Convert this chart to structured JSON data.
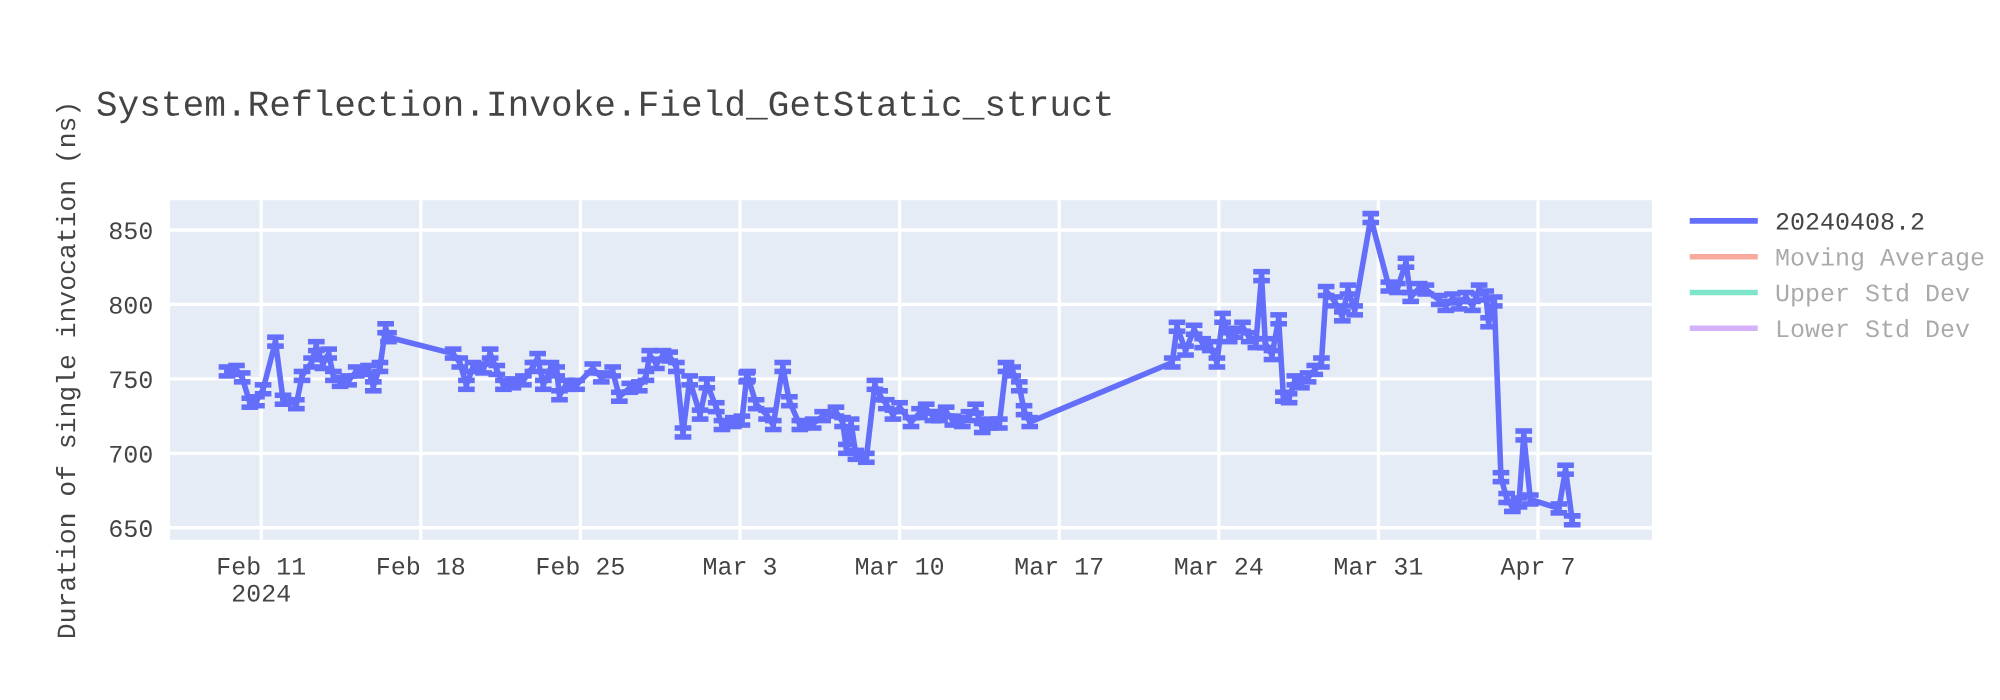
{
  "chart_data": {
    "type": "line",
    "title": "System.Reflection.Invoke.Field_GetStatic_struct",
    "ylabel": "Duration of single invocation (ns)",
    "x": [
      "2024-02-09T12:00",
      "2024-02-09T22:00",
      "2024-02-10T04:00",
      "2024-02-10T12:00",
      "2024-02-10T19:00",
      "2024-02-11T02:00",
      "2024-02-11T15:00",
      "2024-02-11T23:00",
      "2024-02-12T13:00",
      "2024-02-12T19:00",
      "2024-02-13T05:00",
      "2024-02-13T10:00",
      "2024-02-13T17:00",
      "2024-02-13T23:00",
      "2024-02-14T04:00",
      "2024-02-14T11:00",
      "2024-02-14T20:00",
      "2024-02-15T04:00",
      "2024-02-15T17:00",
      "2024-02-15T22:00",
      "2024-02-16T05:00",
      "2024-02-16T11:00",
      "2024-02-16T14:00",
      "2024-02-19T10:00",
      "2024-02-19T17:00",
      "2024-02-20T00:00",
      "2024-02-20T07:00",
      "2024-02-20T18:00",
      "2024-02-21T01:00",
      "2024-02-21T08:00",
      "2024-02-21T15:00",
      "2024-02-22T01:00",
      "2024-02-22T12:00",
      "2024-02-22T22:00",
      "2024-02-23T03:00",
      "2024-02-23T09:00",
      "2024-02-23T17:00",
      "2024-02-23T23:00",
      "2024-02-24T02:00",
      "2024-02-24T09:00",
      "2024-02-24T20:00",
      "2024-02-25T13:00",
      "2024-02-25T22:00",
      "2024-02-26T10:00",
      "2024-02-26T17:00",
      "2024-02-27T04:00",
      "2024-02-27T14:00",
      "2024-02-27T21:00",
      "2024-02-28T01:00",
      "2024-02-28T08:00",
      "2024-02-28T15:00",
      "2024-02-28T22:00",
      "2024-02-29T05:00",
      "2024-02-29T12:00",
      "2024-02-29T19:00",
      "2024-03-01T06:00",
      "2024-03-01T13:00",
      "2024-03-01T23:00",
      "2024-03-02T05:00",
      "2024-03-02T17:00",
      "2024-03-03T02:00",
      "2024-03-03T07:00",
      "2024-03-03T08:00",
      "2024-03-03T17:00",
      "2024-03-04T04:00",
      "2024-03-04T11:00",
      "2024-03-04T21:00",
      "2024-03-05T04:00",
      "2024-03-05T15:00",
      "2024-03-06T05:00",
      "2024-03-06T15:00",
      "2024-03-07T05:00",
      "2024-03-07T12:00",
      "2024-03-07T16:00",
      "2024-03-07T21:00",
      "2024-03-08T02:00",
      "2024-03-08T13:00",
      "2024-03-08T22:00",
      "2024-03-09T03:00",
      "2024-03-09T10:00",
      "2024-03-09T17:00",
      "2024-03-10T00:00",
      "2024-03-10T12:00",
      "2024-03-10T21:00",
      "2024-03-11T04:00",
      "2024-03-11T11:00",
      "2024-03-11T18:00",
      "2024-03-12T01:00",
      "2024-03-12T08:00",
      "2024-03-12T18:00",
      "2024-03-13T01:00",
      "2024-03-13T08:00",
      "2024-03-13T15:00",
      "2024-03-13T22:00",
      "2024-03-14T09:00",
      "2024-03-14T16:00",
      "2024-03-14T23:00",
      "2024-03-15T06:00",
      "2024-03-15T11:00",
      "2024-03-15T17:00",
      "2024-03-21T23:00",
      "2024-03-22T04:00",
      "2024-03-22T13:00",
      "2024-03-22T22:00",
      "2024-03-23T07:00",
      "2024-03-23T15:00",
      "2024-03-23T22:00",
      "2024-03-24T04:00",
      "2024-03-24T11:00",
      "2024-03-24T17:00",
      "2024-03-25T01:00",
      "2024-03-25T08:00",
      "2024-03-25T15:00",
      "2024-03-25T21:00",
      "2024-03-26T01:00",
      "2024-03-26T08:00",
      "2024-03-26T15:00",
      "2024-03-26T20:00",
      "2024-03-27T02:00",
      "2024-03-27T08:00",
      "2024-03-27T15:00",
      "2024-03-27T22:00",
      "2024-03-28T05:00",
      "2024-03-28T12:00",
      "2024-03-28T17:00",
      "2024-03-29T02:00",
      "2024-03-29T10:00",
      "2024-03-29T16:00",
      "2024-03-29T23:00",
      "2024-03-30T16:00",
      "2024-03-31T11:00",
      "2024-03-31T20:00",
      "2024-04-01T05:00",
      "2024-04-01T10:00",
      "2024-04-01T19:00",
      "2024-04-02T02:00",
      "2024-04-02T16:00",
      "2024-04-02T23:00",
      "2024-04-03T06:00",
      "2024-04-03T13:00",
      "2024-04-03T20:00",
      "2024-04-04T03:00",
      "2024-04-04T10:00",
      "2024-04-04T17:00",
      "2024-04-04T20:00",
      "2024-04-05T02:00",
      "2024-04-05T09:00",
      "2024-04-05T15:00",
      "2024-04-05T21:00",
      "2024-04-06T04:00",
      "2024-04-06T09:00",
      "2024-04-06T16:00",
      "2024-04-07T22:00",
      "2024-04-08T05:00",
      "2024-04-08T12:00"
    ],
    "series": [
      {
        "name": "20240408.2",
        "color": "#636efa",
        "errors": [
          3,
          3,
          3,
          3,
          3,
          3,
          3,
          3,
          3,
          3,
          3,
          3,
          3,
          3,
          3,
          3,
          3,
          3,
          3,
          3,
          3,
          3,
          3,
          3,
          3,
          3,
          3,
          3,
          3,
          3,
          3,
          3,
          3,
          3,
          3,
          3,
          3,
          3,
          3,
          3,
          3,
          3,
          3,
          3,
          3,
          3,
          3,
          3,
          3,
          3,
          3,
          3,
          3,
          3,
          3,
          3,
          3,
          3,
          3,
          3,
          3,
          3,
          3,
          3,
          3,
          3,
          3,
          3,
          3,
          3,
          3,
          3,
          3,
          3,
          3,
          3,
          3,
          3,
          3,
          3,
          3,
          3,
          3,
          3,
          3,
          3,
          3,
          3,
          3,
          3,
          3,
          3,
          3,
          3,
          3,
          3,
          3,
          3,
          3,
          3,
          3,
          3,
          3,
          3,
          3,
          3,
          3,
          3,
          3,
          3,
          3,
          3,
          3,
          3,
          3,
          3,
          3,
          3,
          3,
          3,
          3,
          3,
          3,
          3,
          3,
          3,
          3,
          3,
          3,
          3,
          3,
          3,
          3,
          3,
          3,
          3,
          3,
          3,
          3,
          3,
          3,
          3,
          3,
          3,
          3,
          3,
          3,
          3,
          3,
          3,
          3,
          3,
          3,
          3,
          3
        ],
        "values": [
          755,
          756,
          751,
          734,
          735,
          743,
          775,
          736,
          733,
          752,
          761,
          772,
          760,
          767,
          752,
          748,
          749,
          755,
          756,
          745,
          758,
          784,
          778,
          767,
          761,
          746,
          758,
          757,
          767,
          756,
          746,
          747,
          749,
          758,
          764,
          746,
          758,
          755,
          739,
          746,
          746,
          757,
          751,
          755,
          738,
          744,
          745,
          752,
          766,
          760,
          766,
          765,
          758,
          714,
          749,
          726,
          747,
          731,
          719,
          721,
          722,
          751,
          752,
          733,
          726,
          719,
          758,
          735,
          719,
          720,
          725,
          728,
          721,
          703,
          720,
          699,
          697,
          746,
          739,
          733,
          726,
          731,
          721,
          727,
          730,
          725,
          725,
          728,
          722,
          721,
          725,
          730,
          717,
          720,
          720,
          758,
          755,
          745,
          729,
          721,
          761,
          785,
          769,
          783,
          774,
          772,
          761,
          791,
          778,
          781,
          785,
          778,
          774,
          819,
          774,
          766,
          790,
          738,
          737,
          749,
          747,
          751,
          756,
          761,
          809,
          802,
          792,
          810,
          796,
          858,
          812,
          811,
          828,
          805,
          811,
          810,
          803,
          799,
          804,
          800,
          805,
          799,
          810,
          806,
          788,
          802,
          684,
          670,
          664,
          667,
          712,
          669,
          663,
          689,
          655
        ]
      },
      {
        "name": "Moving Average",
        "color": "#ef553b",
        "values": [
          null,
          null,
          null,
          null,
          null,
          null,
          null,
          null,
          null,
          null,
          null,
          null,
          null,
          null,
          null,
          null,
          null,
          null,
          null,
          null,
          null,
          null,
          null,
          null,
          null,
          null,
          null,
          null,
          null,
          null,
          null,
          null,
          null,
          null,
          null,
          null,
          null,
          null,
          null,
          null,
          null,
          null,
          null,
          null,
          null,
          null,
          null,
          null,
          null,
          null,
          null,
          null,
          null,
          null,
          null,
          null,
          null,
          null,
          null,
          null,
          null,
          null,
          null,
          null,
          null,
          null,
          null,
          null,
          null,
          null,
          null,
          null,
          null,
          null,
          null,
          null,
          null,
          null,
          null,
          null,
          null,
          null,
          null,
          null,
          null,
          null,
          null,
          null,
          null,
          null,
          null,
          null,
          null,
          null,
          null,
          null,
          null,
          null,
          null,
          null,
          null,
          null,
          null,
          null,
          null,
          null,
          null,
          null,
          null,
          null,
          null,
          null,
          null,
          null,
          null,
          null,
          null,
          null,
          null,
          null,
          null,
          null,
          null,
          null,
          null,
          null,
          null,
          null,
          null,
          null,
          null,
          null,
          null,
          null,
          null,
          null,
          null,
          null,
          null,
          null,
          null,
          null,
          null,
          null,
          null,
          null,
          null,
          null,
          null,
          null,
          null,
          null,
          null,
          null,
          null
        ]
      },
      {
        "name": "Upper Std Dev",
        "color": "#00cc96",
        "values": [
          null,
          null,
          null,
          null,
          null,
          null,
          null,
          null,
          null,
          null,
          null,
          null,
          null,
          null,
          null,
          null,
          null,
          null,
          null,
          null,
          null,
          null,
          null,
          null,
          null,
          null,
          null,
          null,
          null,
          null,
          null,
          null,
          null,
          null,
          null,
          null,
          null,
          null,
          null,
          null,
          null,
          null,
          null,
          null,
          null,
          null,
          null,
          null,
          null,
          null,
          null,
          null,
          null,
          null,
          null,
          null,
          null,
          null,
          null,
          null,
          null,
          null,
          null,
          null,
          null,
          null,
          null,
          null,
          null,
          null,
          null,
          null,
          null,
          null,
          null,
          null,
          null,
          null,
          null,
          null,
          null,
          null,
          null,
          null,
          null,
          null,
          null,
          null,
          null,
          null,
          null,
          null,
          null,
          null,
          null,
          null,
          null,
          null,
          null,
          null,
          null,
          null,
          null,
          null,
          null,
          null,
          null,
          null,
          null,
          null,
          null,
          null,
          null,
          null,
          null,
          null,
          null,
          null,
          null,
          null,
          null,
          null,
          null,
          null,
          null,
          null,
          null,
          null,
          null,
          null,
          null,
          null,
          null,
          null,
          null,
          null,
          null,
          null,
          null,
          null,
          null,
          null,
          null,
          null,
          null,
          null,
          null,
          null,
          null,
          null,
          null,
          null,
          null,
          null,
          null
        ]
      },
      {
        "name": "Lower Std Dev",
        "color": "#ab63fa",
        "values": [
          null,
          null,
          null,
          null,
          null,
          null,
          null,
          null,
          null,
          null,
          null,
          null,
          null,
          null,
          null,
          null,
          null,
          null,
          null,
          null,
          null,
          null,
          null,
          null,
          null,
          null,
          null,
          null,
          null,
          null,
          null,
          null,
          null,
          null,
          null,
          null,
          null,
          null,
          null,
          null,
          null,
          null,
          null,
          null,
          null,
          null,
          null,
          null,
          null,
          null,
          null,
          null,
          null,
          null,
          null,
          null,
          null,
          null,
          null,
          null,
          null,
          null,
          null,
          null,
          null,
          null,
          null,
          null,
          null,
          null,
          null,
          null,
          null,
          null,
          null,
          null,
          null,
          null,
          null,
          null,
          null,
          null,
          null,
          null,
          null,
          null,
          null,
          null,
          null,
          null,
          null,
          null,
          null,
          null,
          null,
          null,
          null,
          null,
          null,
          null,
          null,
          null,
          null,
          null,
          null,
          null,
          null,
          null,
          null,
          null,
          null,
          null,
          null,
          null,
          null,
          null,
          null,
          null,
          null,
          null,
          null,
          null,
          null,
          null,
          null,
          null,
          null,
          null,
          null,
          null,
          null,
          null,
          null,
          null,
          null,
          null,
          null,
          null,
          null,
          null,
          null,
          null,
          null,
          null,
          null,
          null,
          null,
          null,
          null,
          null,
          null,
          null,
          null,
          null,
          null
        ]
      }
    ],
    "xlim": [
      "2024-02-07",
      "2024-04-12"
    ],
    "xticks": [
      {
        "value": "2024-02-11",
        "label": "Feb 11\n2024"
      },
      {
        "value": "2024-02-18",
        "label": "Feb 18"
      },
      {
        "value": "2024-02-25",
        "label": "Feb 25"
      },
      {
        "value": "2024-03-03",
        "label": "Mar 3"
      },
      {
        "value": "2024-03-10",
        "label": "Mar 10"
      },
      {
        "value": "2024-03-17",
        "label": "Mar 17"
      },
      {
        "value": "2024-03-24",
        "label": "Mar 24"
      },
      {
        "value": "2024-03-31",
        "label": "Mar 31"
      },
      {
        "value": "2024-04-07",
        "label": "Apr 7"
      }
    ],
    "ylim": [
      642,
      870
    ],
    "yticks": [
      650,
      700,
      750,
      800,
      850
    ],
    "grid": true,
    "legend": "top right",
    "marker": "none",
    "line_style": "solid"
  }
}
